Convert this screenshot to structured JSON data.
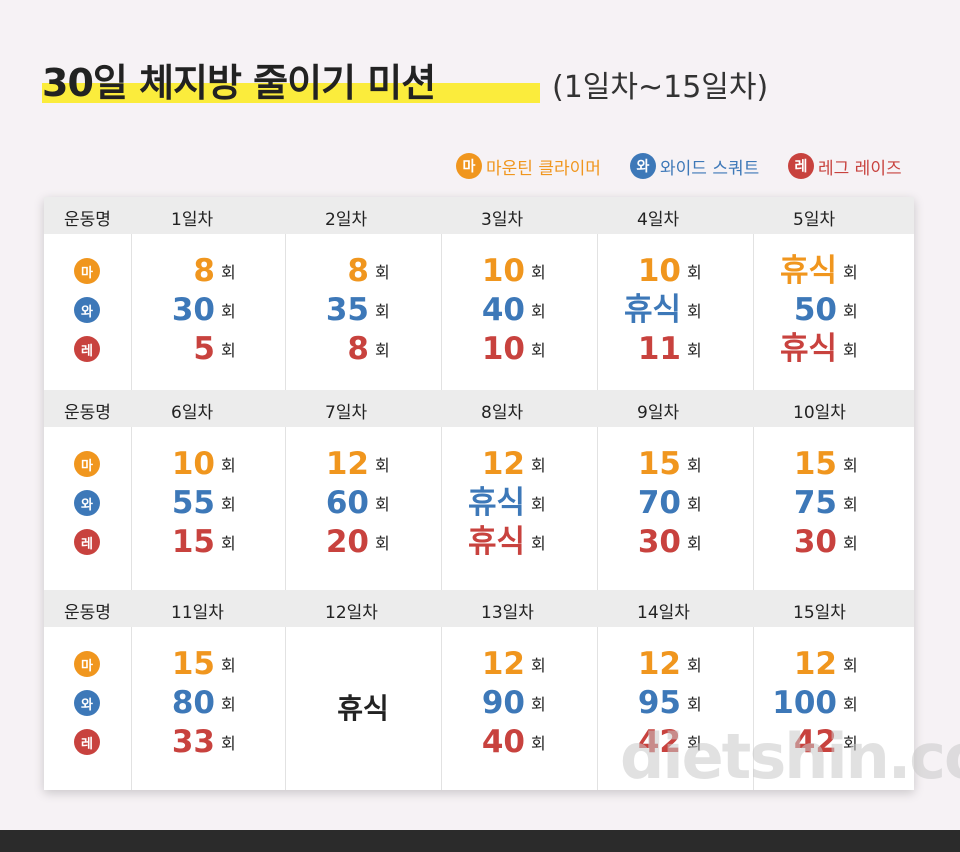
{
  "header": {
    "title": "30일 체지방 줄이기 미션",
    "subtitle": "(1일차~15일차)"
  },
  "legend": {
    "items": [
      {
        "icon": "마",
        "name": "마운틴 클라이머",
        "color": "#f0961e"
      },
      {
        "icon": "와",
        "name": "와이드 스쿼트",
        "color": "#3d78b8"
      },
      {
        "icon": "레",
        "name": "레그 레이즈",
        "color": "#c8423e"
      }
    ]
  },
  "table": {
    "unit": "회",
    "blocks": [
      {
        "header": "운동명",
        "days": [
          {
            "label": "1일차",
            "values": [
              8,
              30,
              5
            ]
          },
          {
            "label": "2일차",
            "values": [
              8,
              35,
              8
            ]
          },
          {
            "label": "3일차",
            "values": [
              10,
              40,
              10
            ]
          },
          {
            "label": "4일차",
            "values": [
              10,
              "휴식",
              11
            ]
          },
          {
            "label": "5일차",
            "values": [
              "휴식",
              50,
              "휴식"
            ]
          }
        ]
      },
      {
        "header": "운동명",
        "days": [
          {
            "label": "6일차",
            "values": [
              10,
              55,
              15
            ]
          },
          {
            "label": "7일차",
            "values": [
              12,
              60,
              20
            ]
          },
          {
            "label": "8일차",
            "values": [
              12,
              "휴식",
              "휴식"
            ]
          },
          {
            "label": "9일차",
            "values": [
              15,
              70,
              30
            ]
          },
          {
            "label": "10일차",
            "values": [
              15,
              75,
              30
            ]
          }
        ]
      },
      {
        "header": "운동명",
        "days": [
          {
            "label": "11일차",
            "values": [
              15,
              80,
              33
            ]
          },
          {
            "label": "12일차",
            "rest": "휴식"
          },
          {
            "label": "13일차",
            "values": [
              12,
              90,
              40
            ]
          },
          {
            "label": "14일차",
            "values": [
              12,
              95,
              42
            ]
          },
          {
            "label": "15일차",
            "values": [
              12,
              100,
              42
            ]
          }
        ]
      }
    ]
  },
  "watermark": "dietshin.com"
}
